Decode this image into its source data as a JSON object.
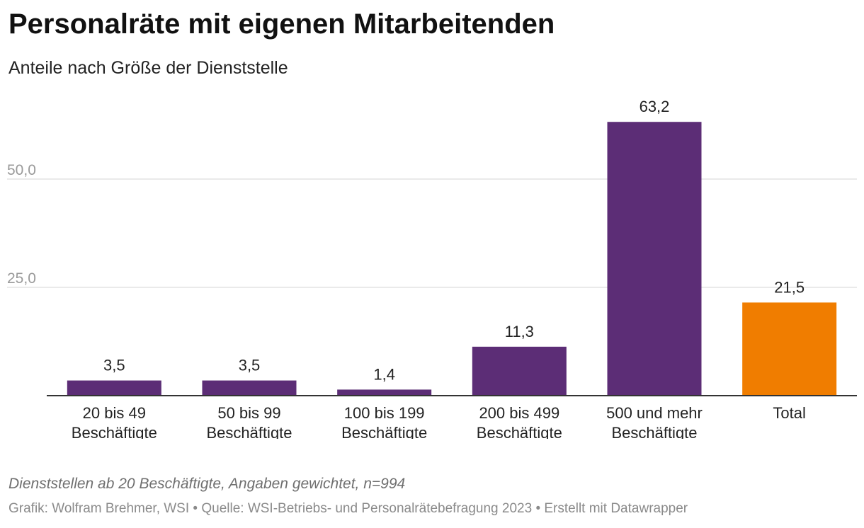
{
  "title": "Personalräte mit eigenen Mitarbeitenden",
  "subtitle": "Anteile nach Größe der Dienststelle",
  "notes": "Dienststellen ab 20 Beschäftigte, Angaben gewichtet, n=994",
  "source": "Grafik: Wolfram Brehmer, WSI • Quelle: WSI-Betriebs- und Personalrätebefragung 2023 • Erstellt mit Datawrapper",
  "colors": {
    "bar": "#5c2d76",
    "highlight": "#f07d00",
    "grid": "#e3e3e3",
    "axis": "#333333"
  },
  "chart_data": {
    "type": "bar",
    "categories": [
      [
        "20 bis 49",
        "Beschäftigte"
      ],
      [
        "50 bis 99",
        "Beschäftigte"
      ],
      [
        "100 bis 199",
        "Beschäftigte"
      ],
      [
        "200 bis 499",
        "Beschäftigte"
      ],
      [
        "500 und mehr",
        "Beschäftigte"
      ],
      [
        "Total"
      ]
    ],
    "values": [
      3.5,
      3.5,
      1.4,
      11.3,
      63.2,
      21.5
    ],
    "value_labels": [
      "3,5",
      "3,5",
      "1,4",
      "11,3",
      "63,2",
      "21,5"
    ],
    "highlight_index": 5,
    "yticks": [
      25,
      50
    ],
    "ytick_labels": [
      "25,0",
      "50,0"
    ],
    "ylim": [
      0,
      65
    ],
    "grid": true,
    "xlabel": "",
    "ylabel": ""
  }
}
